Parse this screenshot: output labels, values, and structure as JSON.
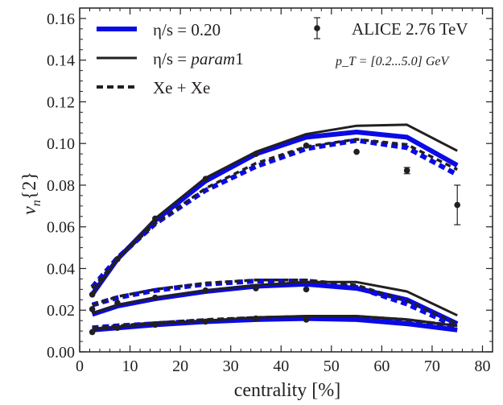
{
  "chart_data": {
    "type": "line",
    "xlabel": "centrality [%]",
    "ylabel": "v_n{2}",
    "xlim": [
      0,
      82
    ],
    "ylim": [
      0,
      0.165
    ],
    "x_ticks": [
      "0",
      "10",
      "20",
      "30",
      "40",
      "50",
      "60",
      "70",
      "80"
    ],
    "y_ticks": [
      "0.00",
      "0.02",
      "0.04",
      "0.06",
      "0.08",
      "0.10",
      "0.12",
      "0.14",
      "0.16"
    ],
    "legend": {
      "placement": "top",
      "entries": [
        {
          "label_parts": [
            "η/s = 0.20"
          ],
          "style": "thick-blue"
        },
        {
          "label_parts": [
            "η/s = ",
            "param",
            "1"
          ],
          "style": "thin-black"
        },
        {
          "label_parts": [
            "Xe + Xe"
          ],
          "style": "dashed-black"
        },
        {
          "label_parts": [
            "ALICE 2.76 TeV"
          ],
          "style": "marker"
        }
      ],
      "pt_label": "p_T = [0.2...5.0] GeV"
    },
    "colors": {
      "blue": "#0a0ae6",
      "black": "#231f20"
    },
    "series": [
      {
        "name": "η/s = 0.20",
        "harmonic": "v2",
        "style": "thick-blue",
        "x": [
          2.5,
          7.5,
          15,
          25,
          35,
          45,
          55,
          65,
          75
        ],
        "y": [
          0.0275,
          0.0445,
          0.063,
          0.082,
          0.095,
          0.103,
          0.1055,
          0.103,
          0.0895
        ]
      },
      {
        "name": "η/s = param1",
        "harmonic": "v2",
        "style": "thin-black",
        "x": [
          2.5,
          7.5,
          15,
          25,
          35,
          45,
          55,
          65,
          75
        ],
        "y": [
          0.0275,
          0.0445,
          0.064,
          0.0835,
          0.096,
          0.1045,
          0.1085,
          0.109,
          0.0965
        ]
      },
      {
        "name": "Xe+Xe",
        "harmonic": "v2",
        "style": "dashed-blue",
        "x": [
          2.5,
          7.5,
          15,
          25,
          35,
          45,
          55,
          65,
          75
        ],
        "y": [
          0.031,
          0.045,
          0.0615,
          0.0775,
          0.089,
          0.0975,
          0.1015,
          0.098,
          0.085
        ]
      },
      {
        "name": "Xe+Xe",
        "harmonic": "v2",
        "style": "dashed-black",
        "x": [
          2.5,
          7.5,
          15,
          25,
          35,
          45,
          55,
          65,
          75
        ],
        "y": [
          0.0305,
          0.0445,
          0.0615,
          0.0785,
          0.0905,
          0.0985,
          0.102,
          0.0995,
          0.0875
        ]
      },
      {
        "name": "η/s = 0.20",
        "harmonic": "v3",
        "style": "thick-blue",
        "x": [
          2.5,
          7.5,
          15,
          25,
          35,
          45,
          55,
          65,
          75
        ],
        "y": [
          0.018,
          0.022,
          0.0255,
          0.029,
          0.0315,
          0.0325,
          0.0305,
          0.025,
          0.0135
        ]
      },
      {
        "name": "η/s = param1",
        "harmonic": "v3",
        "style": "thin-black",
        "x": [
          2.5,
          7.5,
          15,
          25,
          35,
          45,
          55,
          65,
          75
        ],
        "y": [
          0.0185,
          0.0225,
          0.026,
          0.0295,
          0.032,
          0.0335,
          0.0335,
          0.029,
          0.0175
        ]
      },
      {
        "name": "Xe+Xe",
        "harmonic": "v3",
        "style": "dashed-blue",
        "x": [
          2.5,
          7.5,
          15,
          25,
          35,
          45,
          55,
          65,
          75
        ],
        "y": [
          0.0225,
          0.026,
          0.0295,
          0.0325,
          0.034,
          0.034,
          0.031,
          0.023,
          0.012
        ]
      },
      {
        "name": "Xe+Xe",
        "harmonic": "v3",
        "style": "dashed-black",
        "x": [
          2.5,
          7.5,
          15,
          25,
          35,
          45,
          55,
          65,
          75
        ],
        "y": [
          0.0225,
          0.0265,
          0.03,
          0.033,
          0.0345,
          0.0345,
          0.032,
          0.0245,
          0.0135
        ]
      },
      {
        "name": "η/s = 0.20",
        "harmonic": "v4",
        "style": "thick-blue",
        "x": [
          2.5,
          7.5,
          15,
          25,
          35,
          45,
          55,
          65,
          75
        ],
        "y": [
          0.0105,
          0.0115,
          0.013,
          0.0145,
          0.0155,
          0.016,
          0.0155,
          0.0135,
          0.0105
        ]
      },
      {
        "name": "η/s = param1",
        "harmonic": "v4",
        "style": "thin-black",
        "x": [
          2.5,
          7.5,
          15,
          25,
          35,
          45,
          55,
          65,
          75
        ],
        "y": [
          0.0105,
          0.012,
          0.0135,
          0.015,
          0.0165,
          0.0172,
          0.0172,
          0.0155,
          0.0125
        ]
      },
      {
        "name": "Xe+Xe",
        "harmonic": "v4",
        "style": "dashed-blue",
        "x": [
          2.5,
          7.5,
          15,
          25,
          35,
          45,
          55,
          65,
          75
        ],
        "y": [
          0.0115,
          0.0125,
          0.0135,
          0.015,
          0.016,
          0.0165,
          0.0165,
          0.015,
          0.012
        ]
      },
      {
        "name": "Xe+Xe",
        "harmonic": "v4",
        "style": "dashed-black",
        "x": [
          2.5,
          7.5,
          15,
          25,
          35,
          45,
          55,
          65,
          75
        ],
        "y": [
          0.0115,
          0.0125,
          0.014,
          0.0155,
          0.0165,
          0.017,
          0.017,
          0.0155,
          0.0125
        ]
      }
    ],
    "data_points": [
      {
        "name": "ALICE 2.76 TeV",
        "harmonic": "v2",
        "x": [
          2.5,
          7.5,
          15,
          25,
          35,
          45,
          55,
          65,
          75
        ],
        "y": [
          0.0275,
          0.0445,
          0.064,
          0.083,
          0.095,
          0.099,
          0.096,
          0.087,
          0.0705
        ],
        "err": [
          0.0005,
          0.0005,
          0.0005,
          0.0005,
          0.0005,
          0.0008,
          0.001,
          0.0015,
          0.0095
        ]
      },
      {
        "name": "ALICE 2.76 TeV",
        "harmonic": "v3",
        "x": [
          2.5,
          7.5,
          15,
          25,
          35,
          45
        ],
        "y": [
          0.0205,
          0.0235,
          0.026,
          0.0295,
          0.0305,
          0.03
        ],
        "err": [
          0.0005,
          0.0005,
          0.0005,
          0.0005,
          0.0005,
          0.0008
        ]
      },
      {
        "name": "ALICE 2.76 TeV",
        "harmonic": "v4",
        "x": [
          2.5,
          7.5,
          15,
          25,
          35,
          45
        ],
        "y": [
          0.0095,
          0.0115,
          0.013,
          0.0145,
          0.016,
          0.0155
        ],
        "err": [
          0.0004,
          0.0004,
          0.0004,
          0.0004,
          0.0005,
          0.0006
        ]
      }
    ]
  }
}
